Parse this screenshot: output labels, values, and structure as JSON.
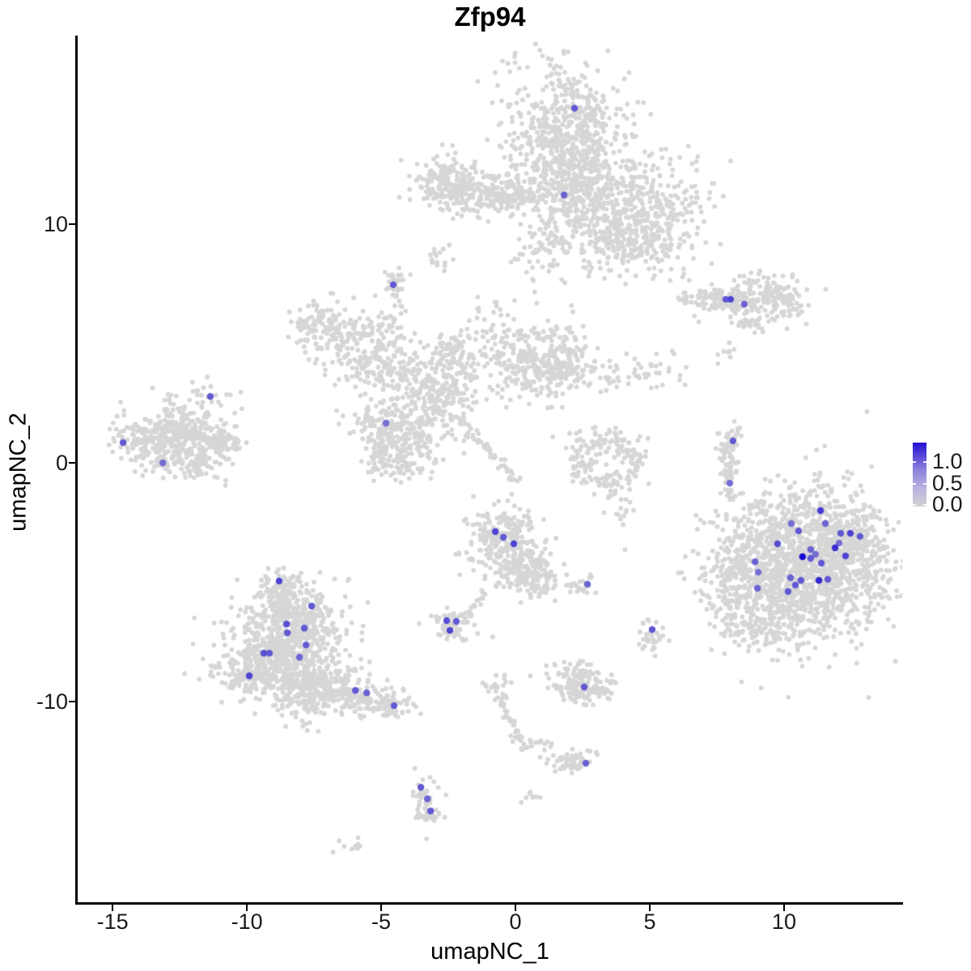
{
  "chart_data": {
    "type": "scatter",
    "title": "Zfp94",
    "xlabel": "umapNC_1",
    "ylabel": "umapNC_2",
    "x_ticks": [
      -15,
      -10,
      -5,
      0,
      5,
      10
    ],
    "y_ticks": [
      10,
      0,
      -10
    ],
    "xlim": [
      -16.3,
      14.4
    ],
    "ylim": [
      -18.47,
      17.86
    ],
    "grid": false,
    "legend": {
      "position": "right",
      "labels": [
        "1.0",
        "0.5",
        "0.0"
      ],
      "values": [
        1.0,
        0.5,
        0.0
      ],
      "min": 0.0,
      "max": 1.0
    },
    "colors": {
      "background": "#ffffff",
      "point_grey": "#d6d6d6",
      "low": "#d3d3d3",
      "high": "#1507d2",
      "legend_gradient": [
        "#d2d2d2",
        "#b7b1e0",
        "#9187dc",
        "#5b4bd8",
        "#2310d3"
      ]
    },
    "clusters": [
      {
        "cx": 1.9,
        "cy": 13.8,
        "sx": 1.14,
        "sy": 1.53,
        "n": 600
      },
      {
        "cx": 2.05,
        "cy": 10.75,
        "sx": 0.9,
        "sy": 1.19,
        "n": 250
      },
      {
        "cx": 4.16,
        "cy": 11.08,
        "sx": 1.36,
        "sy": 1.02,
        "n": 350
      },
      {
        "cx": 5.36,
        "cy": 9.56,
        "sx": 0.9,
        "sy": 0.85,
        "n": 150
      },
      {
        "cx": 3.7,
        "cy": 9.22,
        "sx": 0.6,
        "sy": 0.61,
        "n": 80
      },
      {
        "cx": 0.99,
        "cy": 8.71,
        "sx": 0.54,
        "sy": 0.68,
        "n": 50
      },
      {
        "cx": 0.09,
        "cy": 11.25,
        "sx": 0.75,
        "sy": 0.34,
        "n": 50
      },
      {
        "cx": -2.77,
        "cy": 11.76,
        "sx": 0.54,
        "sy": 0.54,
        "n": 120
      },
      {
        "cx": -1.57,
        "cy": 11.36,
        "sx": 0.75,
        "sy": 0.54,
        "n": 140
      },
      {
        "cx": -0.57,
        "cy": 11.15,
        "sx": 0.54,
        "sy": 0.27,
        "n": 50
      },
      {
        "cx": -2.77,
        "cy": 8.71,
        "sx": 0.24,
        "sy": 0.34,
        "n": 15
      },
      {
        "cx": -4.52,
        "cy": 7.49,
        "sx": 0.27,
        "sy": 0.37,
        "n": 30
      },
      {
        "cx": 7.32,
        "cy": 6.85,
        "sx": 0.6,
        "sy": 0.31,
        "n": 80
      },
      {
        "cx": 8.16,
        "cy": 6.75,
        "sx": 0.42,
        "sy": 0.27,
        "n": 60
      },
      {
        "cx": 9.43,
        "cy": 6.95,
        "sx": 0.72,
        "sy": 0.47,
        "n": 150
      },
      {
        "cx": 8.89,
        "cy": 5.97,
        "sx": 0.36,
        "sy": 0.2,
        "n": 25
      },
      {
        "cx": 7.92,
        "cy": 4.71,
        "sx": 0.15,
        "sy": 0.17,
        "n": 6
      },
      {
        "cx": -7.29,
        "cy": 5.9,
        "sx": 0.66,
        "sy": 0.54,
        "n": 90
      },
      {
        "cx": -6.17,
        "cy": 4.98,
        "sx": 0.72,
        "sy": 0.68,
        "n": 110
      },
      {
        "cx": -5.42,
        "cy": 4.07,
        "sx": 0.54,
        "sy": 0.47,
        "n": 70
      },
      {
        "cx": -4.73,
        "cy": 5.56,
        "sx": 0.42,
        "sy": 0.61,
        "n": 60
      },
      {
        "cx": -1.11,
        "cy": 5.66,
        "sx": 0.45,
        "sy": 0.51,
        "n": 25
      },
      {
        "cx": -3.77,
        "cy": 3.73,
        "sx": 0.6,
        "sy": 0.58,
        "n": 100
      },
      {
        "cx": -2.77,
        "cy": 2.88,
        "sx": 0.54,
        "sy": 0.51,
        "n": 80
      },
      {
        "cx": -1.96,
        "cy": 4.07,
        "sx": 0.42,
        "sy": 0.68,
        "n": 70
      },
      {
        "cx": -2.41,
        "cy": 4.88,
        "sx": 0.3,
        "sy": 0.41,
        "n": 40
      },
      {
        "cx": -4.85,
        "cy": 1.73,
        "sx": 0.66,
        "sy": 0.64,
        "n": 130
      },
      {
        "cx": -3.89,
        "cy": 0.88,
        "sx": 0.72,
        "sy": 0.68,
        "n": 130
      },
      {
        "cx": -4.82,
        "cy": 0.17,
        "sx": 0.57,
        "sy": 0.47,
        "n": 80
      },
      {
        "cx": -2.77,
        "cy": 2.27,
        "sx": 0.75,
        "sy": 0.61,
        "n": 60
      },
      {
        "cx": 0.09,
        "cy": 4.41,
        "sx": 0.72,
        "sy": 0.75,
        "n": 150
      },
      {
        "cx": 1.23,
        "cy": 3.73,
        "sx": 0.6,
        "sy": 0.58,
        "n": 100
      },
      {
        "cx": 1.9,
        "cy": 4.27,
        "sx": 0.51,
        "sy": 0.81,
        "n": 100
      },
      {
        "cx": 4.01,
        "cy": 3.73,
        "sx": 1.36,
        "sy": 0.44,
        "n": 70
      },
      {
        "cx": 3.25,
        "cy": 0.92,
        "sx": 0.75,
        "sy": 0.37,
        "n": 70
      },
      {
        "cx": 2.5,
        "cy": 0.0,
        "sx": 0.27,
        "sy": 0.34,
        "n": 30
      },
      {
        "cx": 3.61,
        "cy": -0.71,
        "sx": 0.6,
        "sy": 0.37,
        "n": 55
      },
      {
        "cx": 4.37,
        "cy": 0.17,
        "sx": 0.27,
        "sy": 0.47,
        "n": 35
      },
      {
        "cx": 4.01,
        "cy": -1.97,
        "sx": 0.24,
        "sy": 0.41,
        "n": 12
      },
      {
        "cx": -13.16,
        "cy": 0.92,
        "sx": 0.84,
        "sy": 0.68,
        "n": 300
      },
      {
        "cx": -11.87,
        "cy": 1.36,
        "sx": 0.6,
        "sy": 0.47,
        "n": 120
      },
      {
        "cx": -11.14,
        "cy": 0.75,
        "sx": 0.42,
        "sy": 0.37,
        "n": 70
      },
      {
        "cx": -10.6,
        "cy": 0.75,
        "sx": 0.3,
        "sy": 0.2,
        "n": 25
      },
      {
        "cx": -11.66,
        "cy": 2.71,
        "sx": 0.54,
        "sy": 0.34,
        "n": 25
      },
      {
        "cx": -12.11,
        "cy": -0.1,
        "sx": 0.75,
        "sy": 0.34,
        "n": 60
      },
      {
        "cx": 8.07,
        "cy": 1.05,
        "sx": 0.24,
        "sy": 0.31,
        "n": 25
      },
      {
        "cx": 7.89,
        "cy": 0.34,
        "sx": 0.21,
        "sy": 0.34,
        "n": 25
      },
      {
        "cx": 8.01,
        "cy": -0.41,
        "sx": 0.18,
        "sy": 0.31,
        "n": 20
      },
      {
        "cx": 7.92,
        "cy": -1.42,
        "sx": 0.12,
        "sy": 0.2,
        "n": 6
      },
      {
        "cx": 10.93,
        "cy": -4.27,
        "sx": 1.63,
        "sy": 1.56,
        "n": 1400
      },
      {
        "cx": 8.89,
        "cy": -4.75,
        "sx": 0.72,
        "sy": 1.29,
        "n": 250
      },
      {
        "cx": 7.83,
        "cy": -5.46,
        "sx": 0.42,
        "sy": 0.95,
        "n": 70
      },
      {
        "cx": 9.58,
        "cy": -6.78,
        "sx": 0.9,
        "sy": 0.47,
        "n": 80
      },
      {
        "cx": 12.29,
        "cy": -2.98,
        "sx": 0.75,
        "sy": 0.61,
        "n": 120
      },
      {
        "cx": -0.51,
        "cy": -3.15,
        "sx": 0.66,
        "sy": 0.68,
        "n": 220
      },
      {
        "cx": 0.15,
        "cy": -4.34,
        "sx": 0.6,
        "sy": 0.58,
        "n": 140
      },
      {
        "cx": 0.84,
        "cy": -5.05,
        "sx": 0.42,
        "sy": 0.37,
        "n": 60
      },
      {
        "cx": -2.32,
        "cy": -6.81,
        "sx": 0.48,
        "sy": 0.34,
        "n": 70
      },
      {
        "cx": 2.5,
        "cy": -5.12,
        "sx": 0.3,
        "sy": 0.24,
        "n": 22
      },
      {
        "cx": 5.09,
        "cy": -7.25,
        "sx": 0.27,
        "sy": 0.37,
        "n": 30
      },
      {
        "cx": 2.32,
        "cy": -9.25,
        "sx": 0.57,
        "sy": 0.37,
        "n": 130
      },
      {
        "cx": 3.13,
        "cy": -9.46,
        "sx": 0.3,
        "sy": 0.24,
        "n": 35
      },
      {
        "cx": 2.5,
        "cy": -8.54,
        "sx": 0.12,
        "sy": 0.17,
        "n": 6
      },
      {
        "cx": -0.81,
        "cy": -9.29,
        "sx": 0.21,
        "sy": 0.2,
        "n": 12
      },
      {
        "cx": 2.08,
        "cy": -12.47,
        "sx": 0.42,
        "sy": 0.31,
        "n": 55
      },
      {
        "cx": -3.43,
        "cy": -13.9,
        "sx": 0.24,
        "sy": 0.37,
        "n": 30
      },
      {
        "cx": -3.25,
        "cy": -14.61,
        "sx": 0.27,
        "sy": 0.31,
        "n": 30
      },
      {
        "cx": 0.63,
        "cy": -13.9,
        "sx": 0.18,
        "sy": 0.17,
        "n": 8
      },
      {
        "cx": -6.02,
        "cy": -16.07,
        "sx": 0.27,
        "sy": 0.17,
        "n": 12
      },
      {
        "cx": -8.64,
        "cy": -5.36,
        "sx": 0.48,
        "sy": 0.47,
        "n": 100
      },
      {
        "cx": -8.34,
        "cy": -6.37,
        "sx": 0.84,
        "sy": 0.61,
        "n": 220
      },
      {
        "cx": -8.49,
        "cy": -7.56,
        "sx": 1.14,
        "sy": 0.75,
        "n": 350
      },
      {
        "cx": -8.64,
        "cy": -8.75,
        "sx": 1.27,
        "sy": 0.61,
        "n": 320
      },
      {
        "cx": -7.44,
        "cy": -9.42,
        "sx": 0.9,
        "sy": 0.41,
        "n": 150
      },
      {
        "cx": -5.93,
        "cy": -9.83,
        "sx": 0.75,
        "sy": 0.34,
        "n": 90
      },
      {
        "cx": -4.73,
        "cy": -10.17,
        "sx": 0.6,
        "sy": 0.27,
        "n": 60
      },
      {
        "cx": -8.04,
        "cy": -10.1,
        "sx": 0.75,
        "sy": 0.27,
        "n": 40
      },
      {
        "cx": -10.02,
        "cy": -8.92,
        "sx": 0.36,
        "sy": 0.51,
        "n": 40
      },
      {
        "cx": -7.74,
        "cy": -10.88,
        "sx": 0.54,
        "sy": 0.2,
        "n": 10
      }
    ],
    "chains": [
      {
        "x1": -2.38,
        "y1": 2.03,
        "x2": 0.09,
        "y2": -0.75,
        "n": 55,
        "jitter": 0.1
      },
      {
        "x1": -1.11,
        "y1": -5.36,
        "x2": -1.78,
        "y2": -6.47,
        "n": 18,
        "jitter": 0.07
      },
      {
        "x1": -0.75,
        "y1": -9.36,
        "x2": 0.33,
        "y2": -12.07,
        "n": 45,
        "jitter": 0.12
      },
      {
        "x1": 0.54,
        "y1": -11.66,
        "x2": 1.36,
        "y2": -11.73,
        "n": 10,
        "jitter": 0.06
      }
    ],
    "singles": [
      [
        -0.84,
        -7.29
      ],
      [
        1.9,
        -5.12
      ],
      [
        4.64,
        -7.08
      ],
      [
        7.92,
        4.64
      ],
      [
        3.92,
        -1.9
      ],
      [
        4.01,
        -2.58
      ]
    ],
    "expressing_points": [
      [
        2.2,
        14.85,
        0.6
      ],
      [
        1.81,
        11.22,
        0.55
      ],
      [
        -4.55,
        7.46,
        0.6
      ],
      [
        7.83,
        6.85,
        0.6
      ],
      [
        8.01,
        6.85,
        0.7
      ],
      [
        8.52,
        6.64,
        0.55
      ],
      [
        -11.36,
        2.78,
        0.6
      ],
      [
        -4.82,
        1.66,
        0.5
      ],
      [
        -14.61,
        0.85,
        0.6
      ],
      [
        -13.13,
        0.0,
        0.5
      ],
      [
        8.1,
        0.92,
        0.6
      ],
      [
        7.98,
        -0.85,
        0.5
      ],
      [
        -0.75,
        -2.88,
        0.7
      ],
      [
        -0.45,
        -3.12,
        0.6
      ],
      [
        -0.06,
        -3.39,
        0.7
      ],
      [
        2.68,
        -5.08,
        0.55
      ],
      [
        11.36,
        -2.0,
        0.75
      ],
      [
        10.27,
        -2.54,
        0.5
      ],
      [
        11.54,
        -2.54,
        0.55
      ],
      [
        10.54,
        -2.85,
        0.6
      ],
      [
        12.11,
        -2.95,
        0.6
      ],
      [
        12.47,
        -2.95,
        0.7
      ],
      [
        12.83,
        -3.08,
        0.6
      ],
      [
        9.76,
        -3.39,
        0.65
      ],
      [
        12.05,
        -3.36,
        0.5
      ],
      [
        10.99,
        -3.63,
        0.55
      ],
      [
        11.9,
        -3.56,
        0.8
      ],
      [
        11.17,
        -3.83,
        0.5
      ],
      [
        10.69,
        -3.93,
        1.3
      ],
      [
        10.99,
        -4.0,
        0.6
      ],
      [
        12.29,
        -3.9,
        0.7
      ],
      [
        11.39,
        -4.2,
        0.6
      ],
      [
        8.92,
        -4.14,
        0.55
      ],
      [
        9.04,
        -4.58,
        0.5
      ],
      [
        10.24,
        -4.81,
        0.55
      ],
      [
        10.63,
        -4.92,
        0.6
      ],
      [
        11.3,
        -4.92,
        0.85
      ],
      [
        11.63,
        -4.88,
        0.6
      ],
      [
        10.42,
        -5.12,
        0.6
      ],
      [
        9.01,
        -5.25,
        0.55
      ],
      [
        10.15,
        -5.39,
        0.6
      ],
      [
        -8.8,
        -4.95,
        0.7
      ],
      [
        -7.59,
        -6.0,
        0.6
      ],
      [
        -8.52,
        -6.75,
        0.65
      ],
      [
        -7.86,
        -6.92,
        0.6
      ],
      [
        -8.49,
        -7.12,
        0.6
      ],
      [
        -7.8,
        -7.63,
        0.6
      ],
      [
        -9.37,
        -7.97,
        0.65
      ],
      [
        -9.16,
        -7.97,
        0.6
      ],
      [
        -8.04,
        -8.14,
        0.55
      ],
      [
        -9.91,
        -8.92,
        0.7
      ],
      [
        -5.96,
        -9.53,
        0.6
      ],
      [
        -5.54,
        -9.63,
        0.55
      ],
      [
        -4.52,
        -10.17,
        0.6
      ],
      [
        -2.56,
        -6.61,
        0.65
      ],
      [
        -2.2,
        -6.64,
        0.6
      ],
      [
        -2.44,
        -7.02,
        0.7
      ],
      [
        5.09,
        -6.98,
        0.6
      ],
      [
        2.56,
        -9.39,
        0.6
      ],
      [
        2.62,
        -12.58,
        0.55
      ],
      [
        -3.52,
        -13.59,
        0.6
      ],
      [
        -3.28,
        -14.07,
        0.55
      ],
      [
        -3.16,
        -14.58,
        0.6
      ]
    ]
  }
}
